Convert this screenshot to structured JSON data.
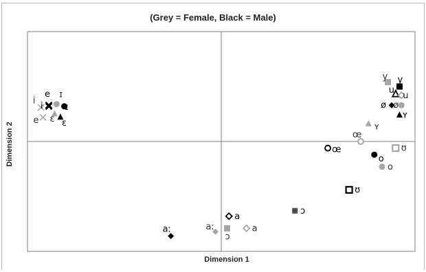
{
  "chart_data": {
    "type": "scatter",
    "title": "(Grey = Female, Black = Male)",
    "xlabel": "Dimension 1",
    "ylabel": "Dimension 2",
    "xlim": [
      -1,
      1
    ],
    "ylim": [
      -1,
      1
    ],
    "grid": false,
    "reference_lines": {
      "x": 0,
      "y": 0
    },
    "colors": {
      "female": "#a6a6a6",
      "male": "#000000",
      "axes": "#7f7f7f"
    },
    "points": [
      {
        "label": "i",
        "group": "female",
        "marker": "x",
        "x": -0.93,
        "y": 0.31
      },
      {
        "label": "i",
        "group": "male",
        "marker": "x",
        "x": -0.89,
        "y": 0.32
      },
      {
        "label": "e",
        "group": "female",
        "marker": "x",
        "x": -0.92,
        "y": 0.22
      },
      {
        "label": "e",
        "group": "male",
        "marker": "x",
        "x": -0.89,
        "y": 0.33
      },
      {
        "label": "ɪ",
        "group": "female",
        "marker": "circle",
        "x": -0.85,
        "y": 0.34
      },
      {
        "label": "ɪ",
        "group": "male",
        "marker": "circle",
        "x": -0.81,
        "y": 0.32
      },
      {
        "label": "ɛ",
        "group": "female",
        "marker": "triangle",
        "x": -0.86,
        "y": 0.25
      },
      {
        "label": "ɛ",
        "group": "male",
        "marker": "triangle",
        "x": -0.83,
        "y": 0.22
      },
      {
        "label": "y",
        "group": "female",
        "marker": "square",
        "x": 0.86,
        "y": 0.54
      },
      {
        "label": "y",
        "group": "male",
        "marker": "square",
        "x": 0.92,
        "y": 0.5
      },
      {
        "label": "u",
        "group": "male",
        "marker": "triangle-open",
        "x": 0.9,
        "y": 0.43
      },
      {
        "label": "u",
        "group": "female",
        "marker": "diamond-open",
        "x": 0.93,
        "y": 0.42
      },
      {
        "label": "ø",
        "group": "male",
        "marker": "diamond",
        "x": 0.88,
        "y": 0.33
      },
      {
        "label": "ø",
        "group": "female",
        "marker": "circle",
        "x": 0.93,
        "y": 0.33
      },
      {
        "label": "ʏ",
        "group": "male",
        "marker": "triangle",
        "x": 0.92,
        "y": 0.24
      },
      {
        "label": "ʏ",
        "group": "female",
        "marker": "triangle",
        "x": 0.76,
        "y": 0.16
      },
      {
        "label": "œ",
        "group": "female",
        "marker": "circle-open",
        "x": 0.72,
        "y": 0.0
      },
      {
        "label": "œ",
        "group": "male",
        "marker": "circle-open",
        "x": 0.55,
        "y": -0.06
      },
      {
        "label": "ʊ",
        "group": "female",
        "marker": "square-open",
        "x": 0.9,
        "y": -0.06
      },
      {
        "label": "o",
        "group": "male",
        "marker": "circle",
        "x": 0.79,
        "y": -0.12
      },
      {
        "label": "o",
        "group": "female",
        "marker": "circle",
        "x": 0.83,
        "y": -0.23
      },
      {
        "label": "ʊ",
        "group": "male",
        "marker": "square-open",
        "x": 0.66,
        "y": -0.44
      },
      {
        "label": "ɔ",
        "group": "male",
        "marker": "square-hatched",
        "x": 0.38,
        "y": -0.63
      },
      {
        "label": "a",
        "group": "male",
        "marker": "diamond-open",
        "x": 0.04,
        "y": -0.68
      },
      {
        "label": "a",
        "group": "female",
        "marker": "diamond-open",
        "x": 0.13,
        "y": -0.79
      },
      {
        "label": "ɔ",
        "group": "female",
        "marker": "square",
        "x": 0.03,
        "y": -0.79
      },
      {
        "label": "aː",
        "group": "female",
        "marker": "diamond",
        "x": -0.03,
        "y": -0.82
      },
      {
        "label": "aː",
        "group": "male",
        "marker": "diamond",
        "x": -0.26,
        "y": -0.86
      }
    ]
  }
}
